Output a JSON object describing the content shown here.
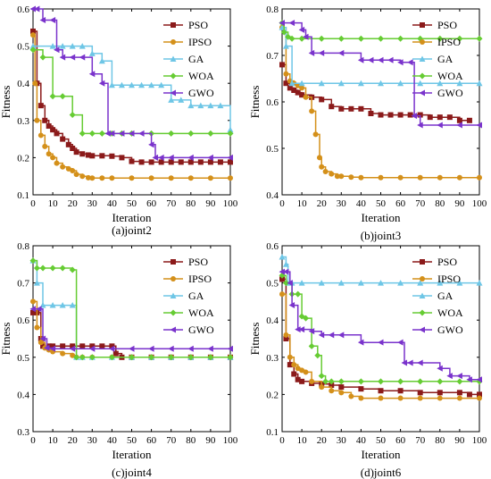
{
  "chart_data": [
    {
      "type": "line",
      "caption": "(a)joint2",
      "xlabel": "Iteration",
      "ylabel": "Fitness",
      "xlim": [
        0,
        100
      ],
      "ylim": [
        0.1,
        0.6
      ],
      "xticks": [
        0,
        10,
        20,
        30,
        40,
        50,
        60,
        70,
        80,
        90,
        100
      ],
      "yticks": [
        0.1,
        0.2,
        0.3,
        0.4,
        0.5,
        0.6
      ],
      "xtick_labels": [
        "0",
        "10",
        "20",
        "30",
        "40",
        "50",
        "60",
        "70",
        "80",
        "90",
        "100"
      ],
      "ytick_labels": [
        "0.1",
        "0.2",
        "0.3",
        "0.4",
        "0.5",
        "0.6"
      ],
      "legend_position": "top-right",
      "series": [
        {
          "name": "PSO",
          "color": "#8b1a1a",
          "marker": "square",
          "x": [
            0,
            2,
            4,
            6,
            8,
            10,
            12,
            15,
            18,
            20,
            22,
            25,
            28,
            30,
            35,
            40,
            45,
            50,
            55,
            60,
            65,
            70,
            75,
            80,
            85,
            90,
            95,
            100
          ],
          "y": [
            0.54,
            0.4,
            0.34,
            0.3,
            0.285,
            0.275,
            0.265,
            0.25,
            0.235,
            0.225,
            0.215,
            0.21,
            0.207,
            0.205,
            0.205,
            0.204,
            0.2,
            0.19,
            0.188,
            0.188,
            0.188,
            0.188,
            0.188,
            0.188,
            0.188,
            0.188,
            0.188,
            0.188
          ]
        },
        {
          "name": "IPSO",
          "color": "#d4901a",
          "marker": "circle",
          "x": [
            0,
            1,
            2,
            4,
            6,
            8,
            10,
            12,
            15,
            18,
            20,
            22,
            25,
            28,
            30,
            35,
            40,
            50,
            60,
            70,
            80,
            90,
            100
          ],
          "y": [
            0.53,
            0.4,
            0.3,
            0.26,
            0.23,
            0.21,
            0.2,
            0.185,
            0.175,
            0.17,
            0.165,
            0.155,
            0.15,
            0.146,
            0.145,
            0.145,
            0.145,
            0.145,
            0.145,
            0.145,
            0.145,
            0.145,
            0.145
          ]
        },
        {
          "name": "GA",
          "color": "#6ec6e6",
          "marker": "triangle",
          "x": [
            0,
            10,
            15,
            20,
            25,
            30,
            35,
            40,
            45,
            50,
            55,
            60,
            65,
            70,
            75,
            80,
            85,
            90,
            95,
            100
          ],
          "y": [
            0.5,
            0.5,
            0.5,
            0.5,
            0.5,
            0.48,
            0.46,
            0.395,
            0.395,
            0.395,
            0.395,
            0.395,
            0.395,
            0.355,
            0.355,
            0.34,
            0.34,
            0.34,
            0.34,
            0.275
          ]
        },
        {
          "name": "WOA",
          "color": "#66cc33",
          "marker": "diamond",
          "x": [
            0,
            5,
            10,
            15,
            20,
            25,
            30,
            35,
            40,
            45,
            50,
            60,
            70,
            80,
            90,
            100
          ],
          "y": [
            0.49,
            0.47,
            0.365,
            0.365,
            0.315,
            0.265,
            0.265,
            0.265,
            0.265,
            0.265,
            0.265,
            0.265,
            0.265,
            0.265,
            0.265,
            0.265
          ]
        },
        {
          "name": "GWO",
          "color": "#7a33cc",
          "marker": "triangle-left",
          "x": [
            0,
            2,
            5,
            10,
            12,
            15,
            20,
            25,
            30,
            35,
            38,
            40,
            45,
            50,
            55,
            60,
            62,
            65,
            70,
            80,
            90,
            100
          ],
          "y": [
            0.6,
            0.6,
            0.57,
            0.57,
            0.49,
            0.47,
            0.47,
            0.47,
            0.425,
            0.4,
            0.265,
            0.265,
            0.265,
            0.265,
            0.265,
            0.235,
            0.2,
            0.2,
            0.2,
            0.2,
            0.2,
            0.2
          ]
        }
      ]
    },
    {
      "type": "line",
      "caption": "(b)joint3",
      "xlabel": "Iteration",
      "ylabel": "Fitness",
      "xlim": [
        0,
        100
      ],
      "ylim": [
        0.4,
        0.8
      ],
      "xticks": [
        0,
        10,
        20,
        30,
        40,
        50,
        60,
        70,
        80,
        90,
        100
      ],
      "yticks": [
        0.4,
        0.5,
        0.6,
        0.7,
        0.8
      ],
      "xtick_labels": [
        "0",
        "10",
        "20",
        "30",
        "40",
        "50",
        "60",
        "70",
        "80",
        "90",
        "100"
      ],
      "ytick_labels": [
        "0.4",
        "0.5",
        "0.6",
        "0.7",
        "0.8"
      ],
      "legend_position": "top-right",
      "series": [
        {
          "name": "PSO",
          "color": "#8b1a1a",
          "marker": "square",
          "x": [
            0,
            2,
            4,
            6,
            8,
            10,
            15,
            20,
            25,
            30,
            35,
            40,
            45,
            50,
            55,
            60,
            65,
            70,
            75,
            80,
            85,
            90,
            95
          ],
          "y": [
            0.68,
            0.64,
            0.63,
            0.625,
            0.62,
            0.615,
            0.61,
            0.605,
            0.59,
            0.585,
            0.585,
            0.585,
            0.575,
            0.572,
            0.572,
            0.572,
            0.572,
            0.572,
            0.567,
            0.567,
            0.567,
            0.56,
            0.56
          ]
        },
        {
          "name": "IPSO",
          "color": "#d4901a",
          "marker": "circle",
          "x": [
            0,
            2,
            4,
            6,
            8,
            10,
            12,
            15,
            17,
            19,
            20,
            22,
            25,
            28,
            30,
            35,
            40,
            50,
            60,
            70,
            80,
            90,
            100
          ],
          "y": [
            0.76,
            0.66,
            0.645,
            0.64,
            0.635,
            0.63,
            0.61,
            0.58,
            0.53,
            0.48,
            0.46,
            0.45,
            0.445,
            0.44,
            0.44,
            0.438,
            0.437,
            0.437,
            0.437,
            0.437,
            0.437,
            0.437,
            0.437
          ]
        },
        {
          "name": "GA",
          "color": "#6ec6e6",
          "marker": "triangle",
          "x": [
            0,
            2,
            5,
            10,
            20,
            30,
            40,
            50,
            60,
            70,
            80,
            90,
            100
          ],
          "y": [
            0.76,
            0.72,
            0.64,
            0.64,
            0.64,
            0.64,
            0.64,
            0.64,
            0.64,
            0.64,
            0.64,
            0.64,
            0.64
          ]
        },
        {
          "name": "WOA",
          "color": "#66cc33",
          "marker": "diamond",
          "x": [
            0,
            1,
            3,
            5,
            10,
            20,
            30,
            40,
            50,
            60,
            70,
            80,
            90,
            100
          ],
          "y": [
            0.77,
            0.75,
            0.74,
            0.736,
            0.736,
            0.736,
            0.736,
            0.736,
            0.736,
            0.736,
            0.736,
            0.736,
            0.736,
            0.736
          ]
        },
        {
          "name": "GWO",
          "color": "#7a33cc",
          "marker": "triangle-left",
          "x": [
            0,
            5,
            10,
            12,
            15,
            20,
            30,
            40,
            45,
            50,
            55,
            60,
            65,
            67,
            70,
            80,
            90,
            100
          ],
          "y": [
            0.77,
            0.77,
            0.755,
            0.74,
            0.705,
            0.705,
            0.705,
            0.69,
            0.69,
            0.69,
            0.69,
            0.685,
            0.685,
            0.57,
            0.55,
            0.55,
            0.55,
            0.55
          ]
        }
      ]
    },
    {
      "type": "line",
      "caption": "(c)joint4",
      "xlabel": "Iteration",
      "ylabel": "Fitness",
      "xlim": [
        0,
        100
      ],
      "ylim": [
        0.3,
        0.8
      ],
      "xticks": [
        0,
        10,
        20,
        30,
        40,
        50,
        60,
        70,
        80,
        90,
        100
      ],
      "yticks": [
        0.3,
        0.4,
        0.5,
        0.6,
        0.7,
        0.8
      ],
      "xtick_labels": [
        "0",
        "10",
        "20",
        "30",
        "40",
        "50",
        "60",
        "70",
        "80",
        "90",
        "100"
      ],
      "ytick_labels": [
        "0.3",
        "0.4",
        "0.5",
        "0.6",
        "0.7",
        "0.8"
      ],
      "legend_position": "top-right",
      "series": [
        {
          "name": "PSO",
          "color": "#8b1a1a",
          "marker": "square",
          "x": [
            0,
            2,
            4,
            5,
            8,
            10,
            15,
            20,
            25,
            30,
            35,
            40,
            42,
            45,
            50,
            60,
            70,
            80,
            90,
            100
          ],
          "y": [
            0.62,
            0.62,
            0.55,
            0.53,
            0.53,
            0.53,
            0.53,
            0.53,
            0.53,
            0.53,
            0.53,
            0.53,
            0.51,
            0.5,
            0.5,
            0.5,
            0.5,
            0.5,
            0.5,
            0.5
          ]
        },
        {
          "name": "IPSO",
          "color": "#d4901a",
          "marker": "circle",
          "x": [
            0,
            2,
            4,
            6,
            8,
            10,
            15,
            20,
            22,
            25,
            30,
            40,
            50,
            60,
            70,
            80,
            90,
            100
          ],
          "y": [
            0.65,
            0.58,
            0.54,
            0.525,
            0.52,
            0.515,
            0.51,
            0.505,
            0.5,
            0.5,
            0.5,
            0.5,
            0.5,
            0.5,
            0.5,
            0.5,
            0.5,
            0.5
          ]
        },
        {
          "name": "GA",
          "color": "#6ec6e6",
          "marker": "triangle",
          "x": [
            0,
            2,
            5,
            10,
            15,
            20,
            22,
            25,
            30,
            40,
            50,
            60,
            70,
            80,
            90,
            100
          ],
          "y": [
            0.76,
            0.7,
            0.64,
            0.64,
            0.64,
            0.64,
            0.5,
            0.5,
            0.5,
            0.5,
            0.5,
            0.5,
            0.5,
            0.5,
            0.5,
            0.5
          ]
        },
        {
          "name": "WOA",
          "color": "#66cc33",
          "marker": "diamond",
          "x": [
            0,
            2,
            5,
            10,
            15,
            20,
            22,
            25,
            30,
            40,
            50,
            60,
            70,
            80,
            90,
            100
          ],
          "y": [
            0.76,
            0.74,
            0.74,
            0.74,
            0.74,
            0.735,
            0.5,
            0.5,
            0.5,
            0.5,
            0.5,
            0.5,
            0.5,
            0.5,
            0.5,
            0.5
          ]
        },
        {
          "name": "GWO",
          "color": "#7a33cc",
          "marker": "triangle-left",
          "x": [
            0,
            3,
            5,
            7,
            10,
            20,
            30,
            40,
            50,
            60,
            70,
            80,
            90,
            100
          ],
          "y": [
            0.63,
            0.63,
            0.55,
            0.525,
            0.523,
            0.523,
            0.523,
            0.523,
            0.523,
            0.523,
            0.523,
            0.523,
            0.523,
            0.523
          ]
        }
      ]
    },
    {
      "type": "line",
      "caption": "(d)joint6",
      "xlabel": "Iteration",
      "ylabel": "Fitness",
      "xlim": [
        0,
        100
      ],
      "ylim": [
        0.1,
        0.6
      ],
      "xticks": [
        0,
        10,
        20,
        30,
        40,
        50,
        60,
        70,
        80,
        90,
        100
      ],
      "yticks": [
        0.1,
        0.2,
        0.3,
        0.4,
        0.5,
        0.6
      ],
      "xtick_labels": [
        "0",
        "10",
        "20",
        "30",
        "40",
        "50",
        "60",
        "70",
        "80",
        "90",
        "100"
      ],
      "ytick_labels": [
        "0.1",
        "0.2",
        "0.3",
        "0.4",
        "0.5",
        "0.6"
      ],
      "legend_position": "top-right",
      "series": [
        {
          "name": "PSO",
          "color": "#8b1a1a",
          "marker": "square",
          "x": [
            0,
            2,
            4,
            6,
            8,
            10,
            15,
            20,
            25,
            30,
            40,
            50,
            60,
            70,
            80,
            90,
            95,
            100
          ],
          "y": [
            0.51,
            0.35,
            0.28,
            0.255,
            0.24,
            0.235,
            0.23,
            0.228,
            0.225,
            0.22,
            0.215,
            0.21,
            0.21,
            0.205,
            0.205,
            0.205,
            0.2,
            0.2
          ]
        },
        {
          "name": "IPSO",
          "color": "#d4901a",
          "marker": "circle",
          "x": [
            0,
            2,
            4,
            6,
            8,
            10,
            12,
            15,
            20,
            25,
            30,
            35,
            40,
            50,
            60,
            70,
            80,
            90,
            100
          ],
          "y": [
            0.47,
            0.36,
            0.3,
            0.28,
            0.27,
            0.265,
            0.26,
            0.235,
            0.22,
            0.21,
            0.205,
            0.195,
            0.19,
            0.19,
            0.19,
            0.19,
            0.19,
            0.19,
            0.19
          ]
        },
        {
          "name": "GA",
          "color": "#6ec6e6",
          "marker": "triangle",
          "x": [
            0,
            2,
            3,
            5,
            10,
            20,
            30,
            40,
            50,
            60,
            70,
            80,
            90,
            100
          ],
          "y": [
            0.57,
            0.55,
            0.5,
            0.5,
            0.5,
            0.5,
            0.5,
            0.5,
            0.5,
            0.5,
            0.5,
            0.5,
            0.5,
            0.5
          ]
        },
        {
          "name": "WOA",
          "color": "#66cc33",
          "marker": "diamond",
          "x": [
            0,
            2,
            5,
            8,
            10,
            12,
            15,
            18,
            20,
            22,
            25,
            30,
            40,
            50,
            60,
            70,
            80,
            90,
            100
          ],
          "y": [
            0.52,
            0.5,
            0.47,
            0.47,
            0.41,
            0.405,
            0.33,
            0.305,
            0.25,
            0.235,
            0.235,
            0.235,
            0.235,
            0.235,
            0.235,
            0.235,
            0.235,
            0.235,
            0.235
          ]
        },
        {
          "name": "GWO",
          "color": "#7a33cc",
          "marker": "triangle-left",
          "x": [
            0,
            2,
            4,
            5,
            8,
            10,
            15,
            20,
            25,
            30,
            40,
            50,
            60,
            62,
            65,
            70,
            80,
            85,
            90,
            95,
            100
          ],
          "y": [
            0.53,
            0.53,
            0.5,
            0.44,
            0.375,
            0.375,
            0.37,
            0.36,
            0.36,
            0.36,
            0.34,
            0.34,
            0.34,
            0.285,
            0.285,
            0.285,
            0.27,
            0.25,
            0.25,
            0.24,
            0.24
          ]
        }
      ]
    }
  ]
}
